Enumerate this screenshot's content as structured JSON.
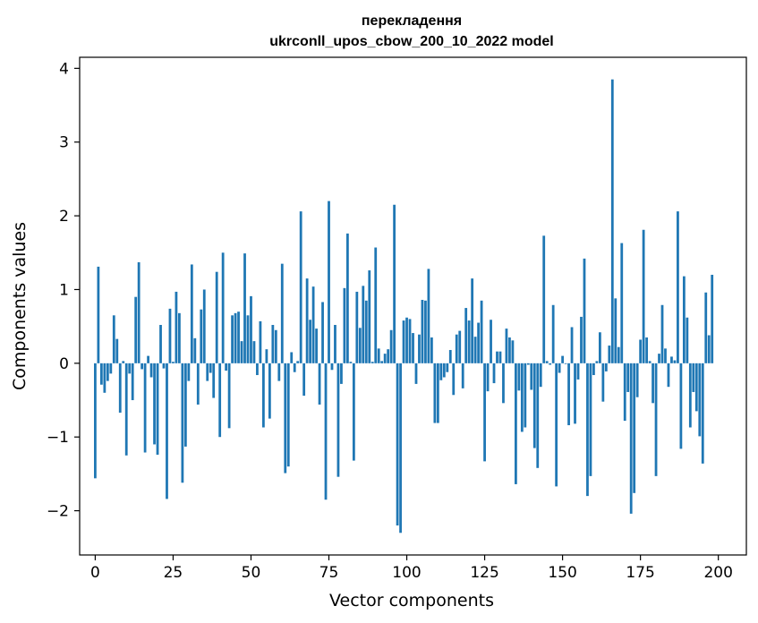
{
  "chart_data": {
    "type": "bar",
    "title": "перекладення",
    "subtitle": "ukrconll_upos_cbow_200_10_2022 model",
    "xlabel": "Vector components",
    "ylabel": "Components values",
    "xlim": [
      -5,
      209
    ],
    "ylim": [
      -2.6,
      4.15
    ],
    "xticks": [
      0,
      25,
      50,
      75,
      100,
      125,
      150,
      175,
      200
    ],
    "xtick_labels": [
      "0",
      "25",
      "50",
      "75",
      "100",
      "125",
      "150",
      "175",
      "200"
    ],
    "yticks": [
      -2,
      -1,
      0,
      1,
      2,
      3,
      4
    ],
    "ytick_labels": [
      "−2",
      "−1",
      "0",
      "1",
      "2",
      "3",
      "4"
    ],
    "grid": false,
    "bar_color": "#1f77b4",
    "values": [
      -1.56,
      1.31,
      -0.29,
      -0.4,
      -0.24,
      -0.14,
      0.65,
      0.33,
      -0.67,
      0.03,
      -1.25,
      -0.14,
      -0.5,
      0.9,
      1.37,
      -0.08,
      -1.21,
      0.1,
      -0.19,
      -1.1,
      -1.24,
      0.52,
      -0.07,
      -1.84,
      0.74,
      0.02,
      0.97,
      0.68,
      -1.62,
      -1.13,
      -0.24,
      1.34,
      0.34,
      -0.56,
      0.73,
      1.0,
      -0.24,
      -0.13,
      -0.47,
      1.24,
      -1.0,
      1.5,
      -0.1,
      -0.88,
      0.65,
      0.68,
      0.7,
      0.3,
      1.49,
      0.65,
      0.91,
      0.3,
      -0.16,
      0.57,
      -0.87,
      0.19,
      -0.75,
      0.52,
      0.45,
      -0.24,
      1.35,
      -1.49,
      -1.4,
      0.15,
      -0.12,
      0.03,
      2.06,
      -0.44,
      1.15,
      0.59,
      1.04,
      0.47,
      -0.56,
      0.83,
      -1.85,
      2.2,
      -0.09,
      0.52,
      -1.54,
      -0.28,
      1.02,
      1.76,
      0.02,
      -1.32,
      0.97,
      0.48,
      1.05,
      0.85,
      1.26,
      0.02,
      1.57,
      0.2,
      0.03,
      0.13,
      0.19,
      0.45,
      2.15,
      -2.2,
      -2.3,
      0.58,
      0.62,
      0.6,
      0.41,
      -0.28,
      0.39,
      0.86,
      0.85,
      1.28,
      0.35,
      -0.81,
      -0.81,
      -0.23,
      -0.19,
      -0.12,
      0.18,
      -0.43,
      0.39,
      0.44,
      -0.34,
      0.75,
      0.58,
      1.15,
      0.36,
      0.55,
      0.85,
      -1.33,
      -0.38,
      0.59,
      -0.27,
      0.16,
      0.16,
      -0.54,
      0.47,
      0.35,
      0.31,
      -1.64,
      -0.37,
      -0.93,
      -0.87,
      -0.02,
      -0.36,
      -1.15,
      -1.42,
      -0.32,
      1.73,
      0.03,
      -0.02,
      0.79,
      -1.67,
      -0.13,
      0.1,
      -0.01,
      -0.84,
      0.49,
      -0.82,
      -0.22,
      0.63,
      1.42,
      -1.8,
      -1.53,
      -0.16,
      0.03,
      0.42,
      -0.52,
      -0.11,
      0.24,
      3.85,
      0.88,
      0.22,
      1.63,
      -0.78,
      -0.39,
      -2.04,
      -1.76,
      -0.46,
      0.32,
      1.81,
      0.35,
      0.03,
      -0.54,
      -1.53,
      0.13,
      0.79,
      0.2,
      -0.32,
      0.09,
      0.04,
      2.06,
      -1.16,
      1.18,
      0.62,
      -0.87,
      -0.39,
      -0.65,
      -0.99,
      -1.36,
      0.96,
      0.38,
      1.2
    ]
  }
}
